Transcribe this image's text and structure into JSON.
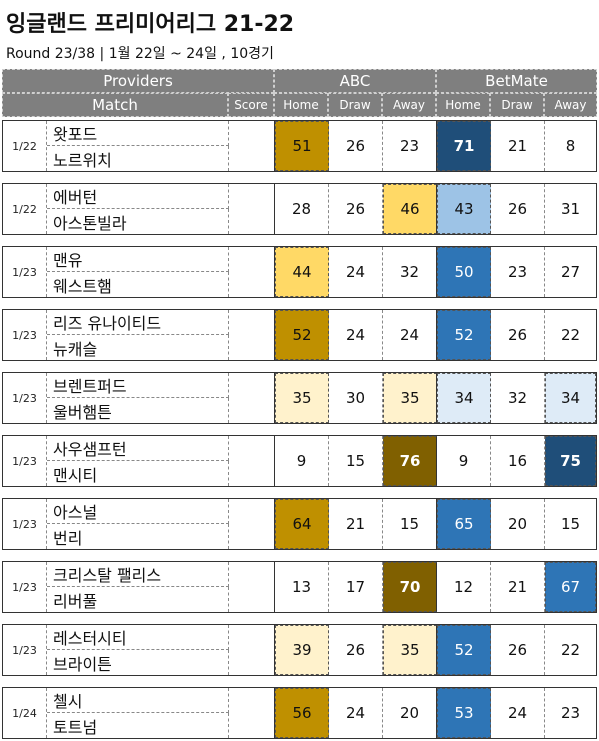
{
  "title": "잉글랜드 프리미어리그 21-22",
  "subtitle": "Round 23/38 | 1월 22일 ~ 24일 , 10경기",
  "headers": {
    "providers": "Providers",
    "match": "Match",
    "score": "Score",
    "provider1": "ABC",
    "provider2": "BetMate",
    "home": "Home",
    "draw": "Draw",
    "away": "Away"
  },
  "colors": {
    "header_bg": "#7f7f7f",
    "abc_dark": "#806000",
    "abc_mid": "#bf9000",
    "abc_light": "#ffd966",
    "abc_pale": "#fff2cc",
    "bm_dark": "#1f4e79",
    "bm_mid": "#2e75b6",
    "bm_light": "#9dc3e6",
    "bm_pale": "#deebf7"
  },
  "matches": [
    {
      "date": "1/22",
      "home": "왓포드",
      "away": "노르위치",
      "score": "",
      "abc": [
        51,
        26,
        23
      ],
      "bm": [
        71,
        21,
        8
      ]
    },
    {
      "date": "1/22",
      "home": "에버턴",
      "away": "아스톤빌라",
      "score": "",
      "abc": [
        28,
        26,
        46
      ],
      "bm": [
        43,
        26,
        31
      ]
    },
    {
      "date": "1/23",
      "home": "맨유",
      "away": "웨스트햄",
      "score": "",
      "abc": [
        44,
        24,
        32
      ],
      "bm": [
        50,
        23,
        27
      ]
    },
    {
      "date": "1/23",
      "home": "리즈 유나이티드",
      "away": "뉴캐슬",
      "score": "",
      "abc": [
        52,
        24,
        24
      ],
      "bm": [
        52,
        26,
        22
      ]
    },
    {
      "date": "1/23",
      "home": "브렌트퍼드",
      "away": "울버햄튼",
      "score": "",
      "abc": [
        35,
        30,
        35
      ],
      "bm": [
        34,
        32,
        34
      ]
    },
    {
      "date": "1/23",
      "home": "사우샘프턴",
      "away": "맨시티",
      "score": "",
      "abc": [
        9,
        15,
        76
      ],
      "bm": [
        9,
        16,
        75
      ]
    },
    {
      "date": "1/23",
      "home": "아스널",
      "away": "번리",
      "score": "",
      "abc": [
        64,
        21,
        15
      ],
      "bm": [
        65,
        20,
        15
      ]
    },
    {
      "date": "1/23",
      "home": "크리스탈 팰리스",
      "away": "리버풀",
      "score": "",
      "abc": [
        13,
        17,
        70
      ],
      "bm": [
        12,
        21,
        67
      ]
    },
    {
      "date": "1/23",
      "home": "레스터시티",
      "away": "브라이튼",
      "score": "",
      "abc": [
        39,
        26,
        35
      ],
      "bm": [
        52,
        26,
        22
      ]
    },
    {
      "date": "1/24",
      "home": "첼시",
      "away": "토트넘",
      "score": "",
      "abc": [
        56,
        24,
        20
      ],
      "bm": [
        53,
        24,
        23
      ]
    }
  ]
}
